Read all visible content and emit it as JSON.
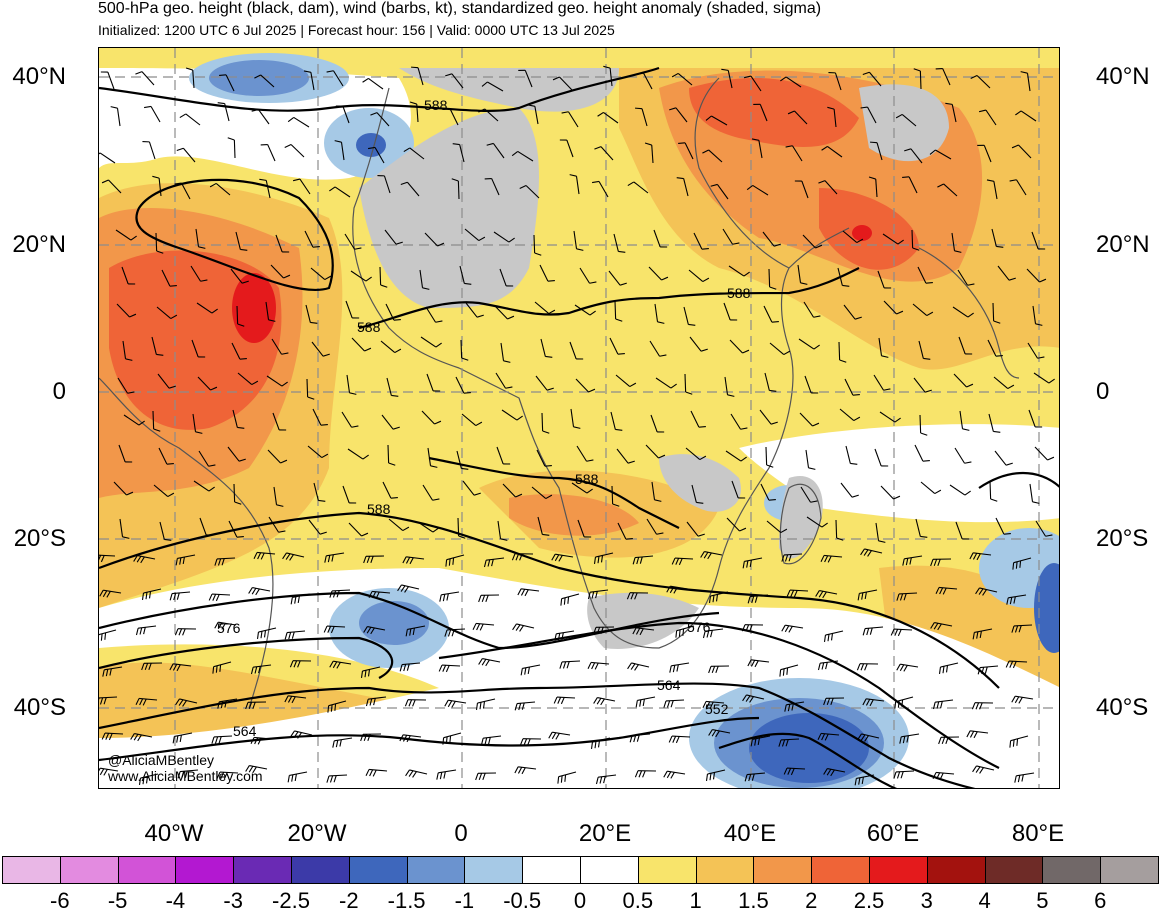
{
  "title": "500-hPa geo. height (black, dam), wind (barbs, kt), standardized geo. height anomaly (shaded, sigma)",
  "subtitle": "Initialized: 1200 UTC 6 Jul 2025 | Forecast hour: 156 | Valid: 0000 UTC 13 Jul 2025",
  "lat_labels": [
    "40°N",
    "20°N",
    "0",
    "20°S",
    "40°S"
  ],
  "lon_labels": [
    "40°W",
    "20°W",
    "0",
    "20°E",
    "40°E",
    "60°E",
    "80°E"
  ],
  "contour_labels": [
    "588",
    "588",
    "588",
    "588",
    "588",
    "576",
    "576",
    "564",
    "564",
    "552"
  ],
  "credit": {
    "handle": "@AliciaMBentley",
    "website": "www.AliciaMBentley.com"
  },
  "colorbar": {
    "colors": [
      "#e9b7e6",
      "#e38be0",
      "#d253d7",
      "#b318d1",
      "#6a2ab4",
      "#3c3aa8",
      "#3e67bc",
      "#6b93cf",
      "#a6c9e6",
      "#ffffff",
      "#ffffff",
      "#f8e46b",
      "#f4c356",
      "#f2974a",
      "#ef6437",
      "#e41a1c",
      "#a3120e",
      "#6e2b27",
      "#716868",
      "#a59e9e"
    ],
    "labels": [
      "-6",
      "-5",
      "-4",
      "-3",
      "-2.5",
      "-2",
      "-1.5",
      "-1",
      "-0.5",
      "0",
      "0.5",
      "1",
      "1.5",
      "2",
      "2.5",
      "3",
      "4",
      "5",
      "6"
    ]
  },
  "map_colors": {
    "land_masked": "#c8c8c8",
    "positive_1": "#f8e46b",
    "positive_15": "#f4c356",
    "positive_2": "#f2974a",
    "positive_25": "#ef6437",
    "positive_3": "#e41a1c",
    "neutral": "#ffffff",
    "negative_05": "#a6c9e6",
    "negative_1": "#6b93cf",
    "negative_15": "#3e67bc"
  }
}
